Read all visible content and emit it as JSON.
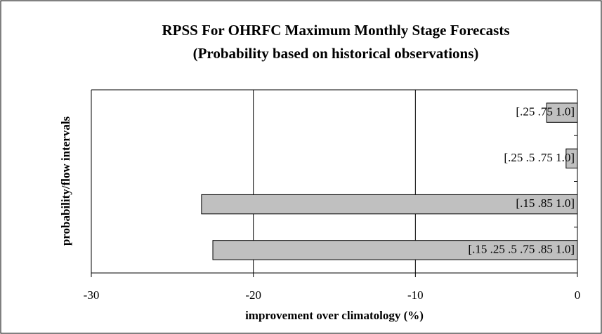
{
  "chart_data": {
    "type": "bar",
    "orientation": "horizontal",
    "title": "RPSS For OHRFC Maximum Monthly Stage Forecasts",
    "subtitle": "(Probability based on historical observations)",
    "x_label": "improvement over climatology (%)",
    "y_label": "probability/flow intervals",
    "categories": [
      "[.25 .75 1.0]",
      "[.25 .5 .75 1.0]",
      "[.15 .85 1.0]",
      "[.15 .25 .5 .75 .85 1.0]"
    ],
    "values": [
      -1.9,
      -0.7,
      -23.2,
      -22.5
    ],
    "color": "#c0c0c0",
    "xlim": [
      -30,
      0
    ],
    "xticks": [
      -30,
      -20,
      -10,
      0
    ],
    "grid": true
  }
}
